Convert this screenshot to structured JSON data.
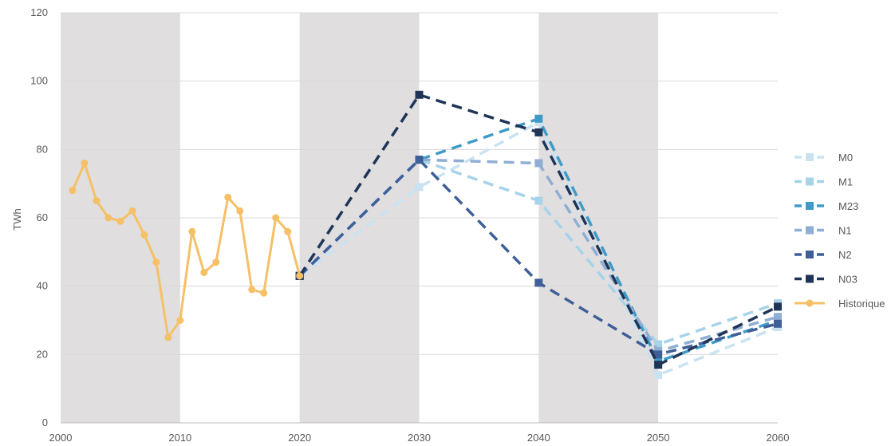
{
  "chart_data": {
    "type": "line",
    "title": "",
    "xlabel": "",
    "ylabel": "TWh",
    "xlim": [
      2000,
      2060
    ],
    "ylim": [
      0,
      120
    ],
    "x_ticks": [
      2000,
      2010,
      2020,
      2030,
      2040,
      2050,
      2060
    ],
    "y_ticks": [
      0,
      20,
      40,
      60,
      80,
      100,
      120
    ],
    "grid": "horizontal",
    "shaded_bands": [
      [
        2000,
        2010
      ],
      [
        2020,
        2030
      ],
      [
        2040,
        2050
      ]
    ],
    "band_color": "#e0dedf",
    "legend_position": "right",
    "series": [
      {
        "name": "M0",
        "color": "#c9e3f1",
        "marker": "square",
        "dashed": true,
        "points": [
          [
            2020,
            43
          ],
          [
            2030,
            69
          ],
          [
            2040,
            88
          ],
          [
            2050,
            14
          ],
          [
            2060,
            28
          ]
        ]
      },
      {
        "name": "M1",
        "color": "#a6d3e9",
        "marker": "square",
        "dashed": true,
        "points": [
          [
            2020,
            43
          ],
          [
            2030,
            77
          ],
          [
            2040,
            65
          ],
          [
            2050,
            23
          ],
          [
            2060,
            35
          ]
        ]
      },
      {
        "name": "M23",
        "color": "#3f9ac7",
        "marker": "square",
        "dashed": true,
        "points": [
          [
            2020,
            43
          ],
          [
            2030,
            77
          ],
          [
            2040,
            89
          ],
          [
            2050,
            18
          ],
          [
            2060,
            30
          ]
        ]
      },
      {
        "name": "N1",
        "color": "#8faed3",
        "marker": "square",
        "dashed": true,
        "points": [
          [
            2020,
            43
          ],
          [
            2030,
            77
          ],
          [
            2040,
            76
          ],
          [
            2050,
            21
          ],
          [
            2060,
            31
          ]
        ]
      },
      {
        "name": "N2",
        "color": "#3f5f98",
        "marker": "square",
        "dashed": true,
        "points": [
          [
            2020,
            43
          ],
          [
            2030,
            77
          ],
          [
            2040,
            41
          ],
          [
            2050,
            20
          ],
          [
            2060,
            29
          ]
        ]
      },
      {
        "name": "N03",
        "color": "#1f3558",
        "marker": "square",
        "dashed": true,
        "points": [
          [
            2020,
            43
          ],
          [
            2030,
            96
          ],
          [
            2040,
            85
          ],
          [
            2050,
            17
          ],
          [
            2060,
            34
          ]
        ]
      },
      {
        "name": "Historique",
        "color": "#f5c066",
        "marker": "circle",
        "dashed": false,
        "points": [
          [
            2001,
            68
          ],
          [
            2002,
            76
          ],
          [
            2003,
            65
          ],
          [
            2004,
            60
          ],
          [
            2005,
            59
          ],
          [
            2006,
            62
          ],
          [
            2007,
            55
          ],
          [
            2008,
            47
          ],
          [
            2009,
            25
          ],
          [
            2010,
            30
          ],
          [
            2011,
            56
          ],
          [
            2012,
            44
          ],
          [
            2013,
            47
          ],
          [
            2014,
            66
          ],
          [
            2015,
            62
          ],
          [
            2016,
            39
          ],
          [
            2017,
            38
          ],
          [
            2018,
            60
          ],
          [
            2019,
            56
          ],
          [
            2020,
            43
          ]
        ]
      }
    ]
  }
}
